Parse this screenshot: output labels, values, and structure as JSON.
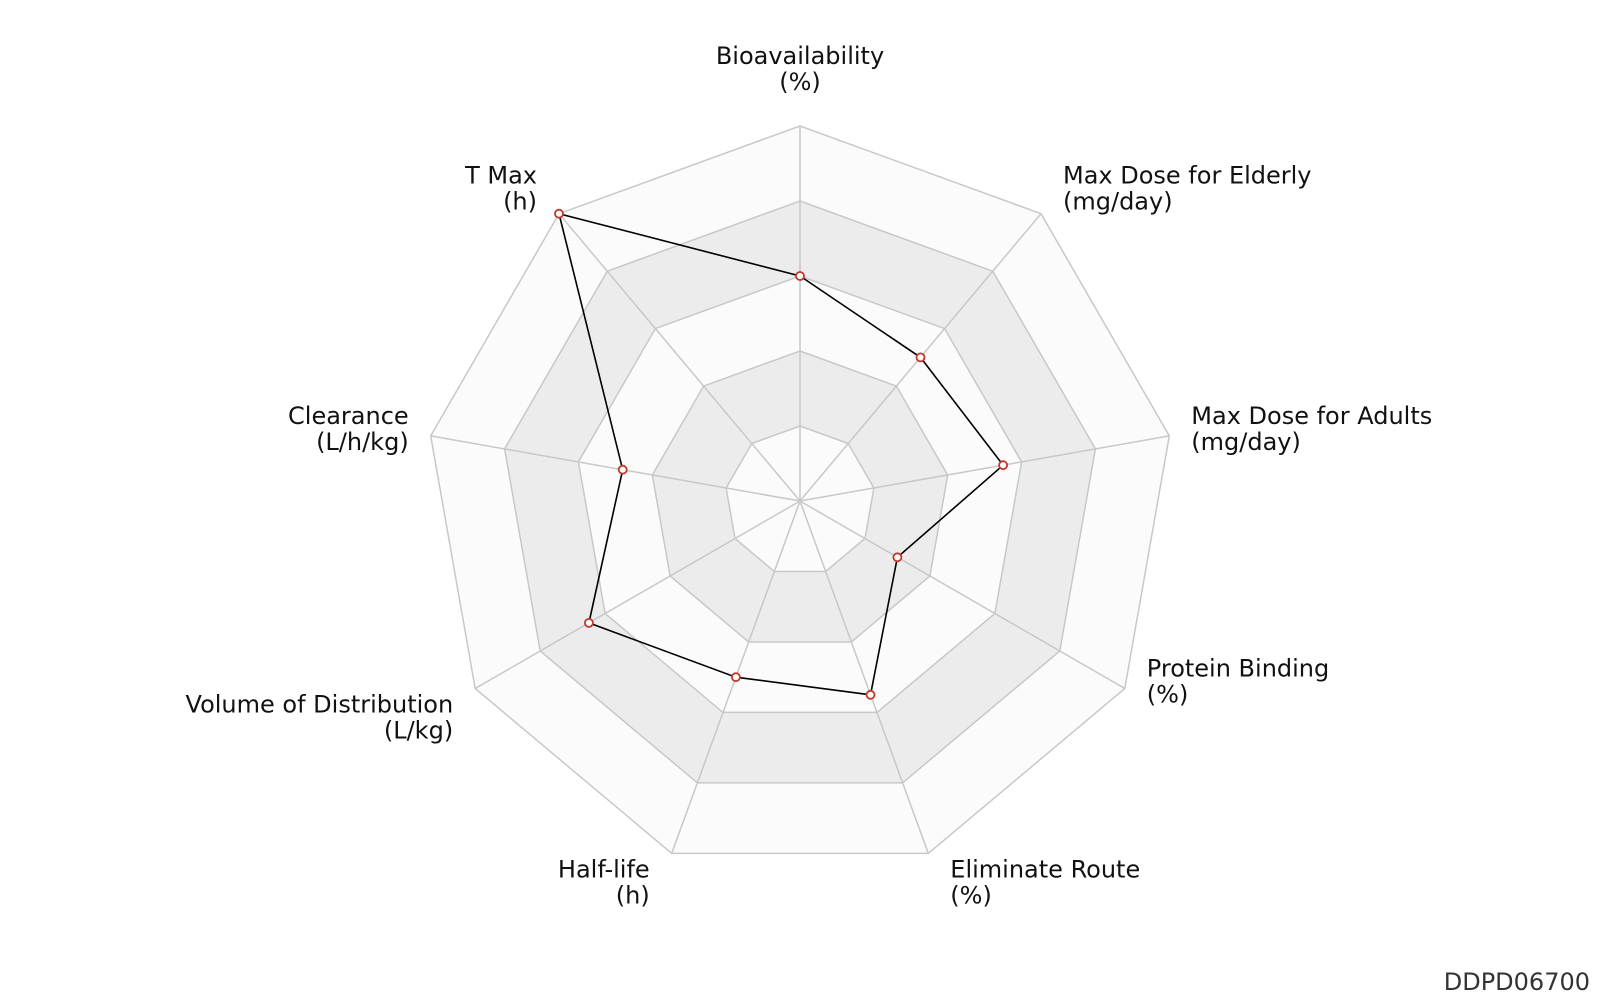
{
  "chart_data": {
    "type": "radar",
    "axes": [
      {
        "name": "Bioavailability",
        "unit": "(%)"
      },
      {
        "name": "Max Dose for Elderly",
        "unit": "(mg/day)"
      },
      {
        "name": "Max Dose for Adults",
        "unit": "(mg/day)"
      },
      {
        "name": "Protein Binding",
        "unit": "(%)"
      },
      {
        "name": "Eliminate Route",
        "unit": "(%)"
      },
      {
        "name": "Half-life",
        "unit": "(h)"
      },
      {
        "name": "Volume of Distribution",
        "unit": "(L/kg)"
      },
      {
        "name": "Clearance",
        "unit": "(L/h/kg)"
      },
      {
        "name": "T Max",
        "unit": "(h)"
      }
    ],
    "levels": 5,
    "range": [
      0,
      1
    ],
    "series": [
      {
        "values": [
          0.6,
          0.5,
          0.55,
          0.3,
          0.55,
          0.5,
          0.65,
          0.48,
          1.0
        ]
      }
    ],
    "colors": {
      "line": "#000000",
      "marker_stroke": "#c0392b",
      "marker_fill": "#ffffff",
      "band_light": "#fbfbfb",
      "band_dark": "#ececec",
      "grid": "#c8c8c8"
    }
  },
  "footer": {
    "id": "DDPD06700"
  }
}
